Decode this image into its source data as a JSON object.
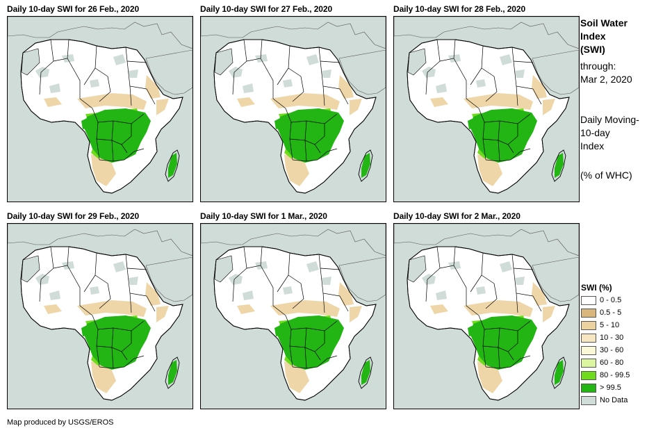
{
  "panels": [
    {
      "title": "Daily 10-day SWI for 26 Feb., 2020"
    },
    {
      "title": "Daily 10-day SWI for 27 Feb., 2020"
    },
    {
      "title": "Daily 10-day SWI for 28 Feb., 2020"
    },
    {
      "title": "Daily 10-day SWI for 29 Feb., 2020"
    },
    {
      "title": "Daily 10-day SWI for 1 Mar., 2020"
    },
    {
      "title": "Daily 10-day SWI for 2 Mar., 2020"
    }
  ],
  "side": {
    "title": "Soil Water\nIndex\n(SWI)",
    "through": "through:\nMar 2, 2020",
    "description": "Daily Moving-\n10-day\nIndex",
    "units": "(% of WHC)"
  },
  "legend": {
    "title": "SWI (%)",
    "items": [
      {
        "label": "0 - 0.5",
        "color": "#ffffff"
      },
      {
        "label": "0.5 - 5",
        "color": "#d9b67c"
      },
      {
        "label": "5 - 10",
        "color": "#ecd29f"
      },
      {
        "label": "10 - 30",
        "color": "#f7e6c2"
      },
      {
        "label": "30 - 60",
        "color": "#fbf8d7"
      },
      {
        "label": "60 - 80",
        "color": "#dcf5a0"
      },
      {
        "label": "80 - 99.5",
        "color": "#70db1d"
      },
      {
        "label": "> 99.5",
        "color": "#22b514"
      },
      {
        "label": "No Data",
        "color": "#d0dcd7"
      }
    ]
  },
  "credit": "Map produced by USGS/EROS",
  "colors": {
    "ocean": "#d0dcd7",
    "dry": "#ffffff",
    "wet": "#22b514",
    "moist": "#70db1d",
    "nodata": "#d0dcd7",
    "tan": "#ecd29f"
  }
}
